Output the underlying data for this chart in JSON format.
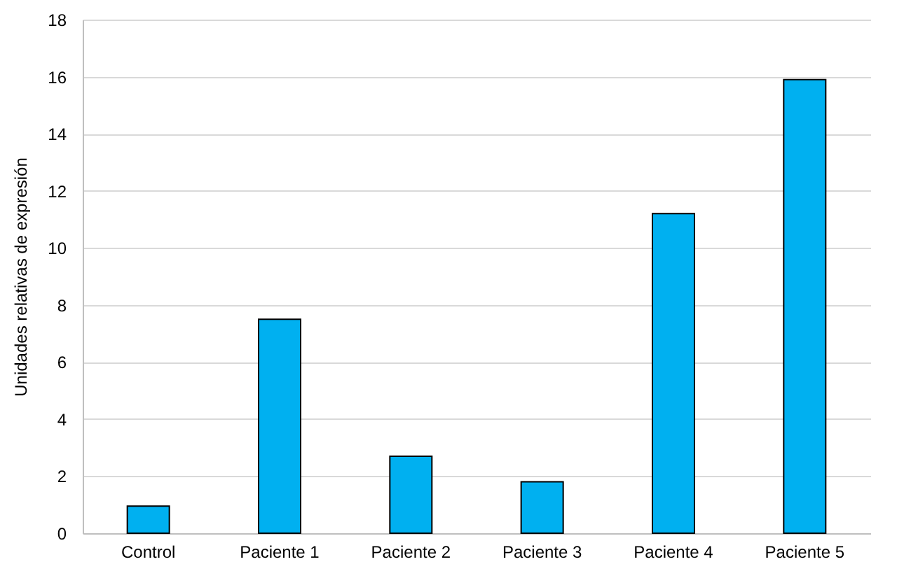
{
  "chart_data": {
    "type": "bar",
    "ylabel": "Unidades relativas de expresión",
    "categories": [
      "Control",
      "Paciente 1",
      "Paciente 2",
      "Paciente 3",
      "Paciente 4",
      "Paciente 5"
    ],
    "values": [
      0.95,
      7.5,
      2.7,
      1.8,
      11.2,
      15.9
    ],
    "color": "#00b0f0",
    "ylim": [
      0,
      18
    ],
    "yticks": [
      0,
      2,
      4,
      6,
      8,
      10,
      12,
      14,
      16,
      18
    ],
    "grid": "y"
  }
}
